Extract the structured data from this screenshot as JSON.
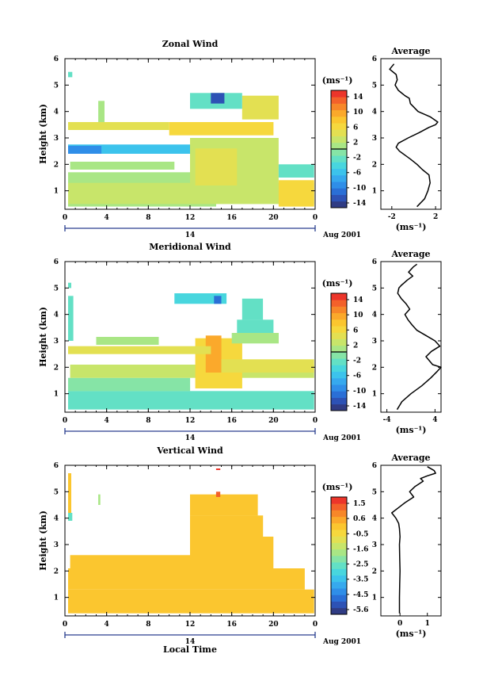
{
  "chart_data": [
    {
      "type": "heatmap",
      "title": "Zonal Wind",
      "xlabel": "",
      "ylabel": "Height (km)",
      "xlim": [
        0,
        24
      ],
      "ylim": [
        0.3,
        6
      ],
      "xticks": [
        "0",
        "4",
        "8",
        "12",
        "16",
        "20",
        "0"
      ],
      "yticks": [
        "1",
        "2",
        "3",
        "4",
        "5",
        "6"
      ],
      "day_label": "14",
      "date_label": "Aug 2001",
      "colorbar": {
        "unit": "(ms⁻¹)",
        "ticks": [
          "14",
          "10",
          "6",
          "2",
          "-2",
          "-6",
          "-10",
          "-14"
        ],
        "range": [
          -16,
          16
        ],
        "marker": 0
      },
      "segments": [
        {
          "t0": 0.3,
          "t1": 14.5,
          "h0": 0.4,
          "h1": 1.7,
          "v": 1.5
        },
        {
          "t0": 0.3,
          "t1": 23.9,
          "h0": 0.5,
          "h1": 1.3,
          "v": 3.5
        },
        {
          "t0": 0.5,
          "t1": 10.5,
          "h0": 1.8,
          "h1": 2.1,
          "v": 1.5
        },
        {
          "t0": 0.3,
          "t1": 13.0,
          "h0": 2.4,
          "h1": 2.75,
          "v": -6
        },
        {
          "t0": 0.3,
          "t1": 3.5,
          "h0": 2.4,
          "h1": 2.7,
          "v": -9
        },
        {
          "t0": 12.0,
          "t1": 20.5,
          "h0": 0.8,
          "h1": 3.0,
          "v": 2.5
        },
        {
          "t0": 12.5,
          "t1": 16.5,
          "h0": 1.2,
          "h1": 2.6,
          "v": 5
        },
        {
          "t0": 20.5,
          "t1": 23.9,
          "h0": 1.5,
          "h1": 2.0,
          "v": -3
        },
        {
          "t0": 20.5,
          "t1": 23.9,
          "h0": 0.4,
          "h1": 1.4,
          "v": 5.5
        },
        {
          "t0": 10.0,
          "t1": 20.0,
          "h0": 3.1,
          "h1": 3.6,
          "v": 6
        },
        {
          "t0": 0.3,
          "t1": 10.0,
          "h0": 3.3,
          "h1": 3.6,
          "v": 5
        },
        {
          "t0": 17.0,
          "t1": 20.5,
          "h0": 3.7,
          "h1": 4.6,
          "v": 4.5
        },
        {
          "t0": 12.0,
          "t1": 17.0,
          "h0": 4.1,
          "h1": 4.7,
          "v": -3
        },
        {
          "t0": 14.0,
          "t1": 15.3,
          "h0": 4.3,
          "h1": 4.7,
          "v": -14
        },
        {
          "t0": 0.3,
          "t1": 0.7,
          "h0": 5.3,
          "h1": 5.5,
          "v": -3
        },
        {
          "t0": 3.2,
          "t1": 3.8,
          "h0": 3.6,
          "h1": 4.4,
          "v": 0
        }
      ],
      "profile": {
        "title": "Average",
        "xlabel": "(ms⁻¹)",
        "xlim": [
          -3,
          2.5
        ],
        "xticks": [
          {
            "v": -2,
            "label": "-2"
          },
          {
            "v": 2,
            "label": "2"
          }
        ],
        "ylim": [
          0.3,
          6
        ],
        "yticks": [
          "1",
          "2",
          "3",
          "4",
          "5",
          "6"
        ],
        "x": [
          0.3,
          1.0,
          1.3,
          1.5,
          1.4,
          0.8,
          0.3,
          -0.3,
          -0.8,
          -1.3,
          -1.6,
          -1.4,
          -0.5,
          0.5,
          1.4,
          2.0,
          2.2,
          1.5,
          0.4,
          -0.3,
          -0.4,
          -0.8,
          -1.4,
          -1.7,
          -1.5,
          -1.6,
          -2.2,
          -1.8
        ],
        "y": [
          0.4,
          0.7,
          1.0,
          1.3,
          1.6,
          1.8,
          2.0,
          2.2,
          2.35,
          2.5,
          2.65,
          2.8,
          3.0,
          3.2,
          3.4,
          3.5,
          3.6,
          3.8,
          4.0,
          4.3,
          4.5,
          4.6,
          4.8,
          5.0,
          5.2,
          5.4,
          5.6,
          5.8
        ]
      }
    },
    {
      "type": "heatmap",
      "title": "Meridional Wind",
      "xlabel": "",
      "ylabel": "Height (km)",
      "xlim": [
        0,
        24
      ],
      "ylim": [
        0.3,
        6
      ],
      "xticks": [
        "0",
        "4",
        "8",
        "12",
        "16",
        "20",
        "0"
      ],
      "yticks": [
        "1",
        "2",
        "3",
        "4",
        "5",
        "6"
      ],
      "day_label": "14",
      "date_label": "Aug 2001",
      "colorbar": {
        "unit": "(ms⁻¹)",
        "ticks": [
          "14",
          "10",
          "6",
          "2",
          "-2",
          "-6",
          "-10",
          "-14"
        ],
        "range": [
          -16,
          16
        ],
        "marker": 0
      },
      "segments": [
        {
          "t0": 0.3,
          "t1": 23.9,
          "h0": 0.4,
          "h1": 1.1,
          "v": -3
        },
        {
          "t0": 0.3,
          "t1": 12.0,
          "h0": 1.1,
          "h1": 1.6,
          "v": -1.5
        },
        {
          "t0": 0.5,
          "t1": 23.9,
          "h0": 1.6,
          "h1": 2.1,
          "v": 2
        },
        {
          "t0": 12.5,
          "t1": 17.0,
          "h0": 1.2,
          "h1": 3.1,
          "v": 6
        },
        {
          "t0": 13.5,
          "t1": 15.0,
          "h0": 1.8,
          "h1": 3.2,
          "v": 9
        },
        {
          "t0": 15.0,
          "t1": 23.9,
          "h0": 1.8,
          "h1": 2.3,
          "v": 4
        },
        {
          "t0": 0.3,
          "t1": 14.0,
          "h0": 2.5,
          "h1": 2.8,
          "v": 5
        },
        {
          "t0": 3.0,
          "t1": 9.0,
          "h0": 2.85,
          "h1": 3.15,
          "v": 1
        },
        {
          "t0": 16.0,
          "t1": 20.5,
          "h0": 2.9,
          "h1": 3.3,
          "v": 1
        },
        {
          "t0": 16.5,
          "t1": 20.0,
          "h0": 3.3,
          "h1": 3.8,
          "v": -3
        },
        {
          "t0": 17.0,
          "t1": 19.0,
          "h0": 3.8,
          "h1": 4.6,
          "v": -2
        },
        {
          "t0": 10.5,
          "t1": 15.5,
          "h0": 4.4,
          "h1": 4.8,
          "v": -4
        },
        {
          "t0": 14.3,
          "t1": 15.0,
          "h0": 4.4,
          "h1": 4.7,
          "v": -11
        },
        {
          "t0": 0.3,
          "t1": 0.8,
          "h0": 3.0,
          "h1": 4.7,
          "v": -2
        },
        {
          "t0": 0.3,
          "t1": 0.6,
          "h0": 5.0,
          "h1": 5.2,
          "v": -2
        }
      ],
      "profile": {
        "title": "Average",
        "xlabel": "(ms⁻¹)",
        "xlim": [
          -5,
          5
        ],
        "xticks": [
          {
            "v": -4,
            "label": "-4"
          },
          {
            "v": 4,
            "label": "4"
          }
        ],
        "ylim": [
          0.3,
          6
        ],
        "yticks": [
          "1",
          "2",
          "3",
          "4",
          "5",
          "6"
        ],
        "x": [
          -2.3,
          -1.5,
          0.0,
          1.8,
          3.3,
          4.4,
          5.0,
          3.6,
          2.5,
          3.4,
          4.8,
          4.0,
          2.5,
          1.0,
          0.2,
          -0.5,
          -1.0,
          -0.2,
          -0.8,
          -1.6,
          -2.2,
          -2.0,
          -1.6,
          -0.6,
          0.3,
          -0.4,
          0.4,
          1.0
        ],
        "y": [
          0.4,
          0.7,
          1.0,
          1.3,
          1.6,
          1.85,
          2.0,
          2.1,
          2.4,
          2.6,
          2.8,
          3.0,
          3.2,
          3.4,
          3.6,
          3.8,
          4.0,
          4.2,
          4.4,
          4.6,
          4.8,
          5.0,
          5.1,
          5.3,
          5.45,
          5.6,
          5.8,
          5.9
        ]
      }
    },
    {
      "type": "heatmap",
      "title": "Vertical Wind",
      "xlabel": "Local Time",
      "ylabel": "Height (km)",
      "xlim": [
        0,
        24
      ],
      "ylim": [
        0.3,
        6
      ],
      "xticks": [
        "0",
        "4",
        "8",
        "12",
        "16",
        "20",
        "0"
      ],
      "yticks": [
        "1",
        "2",
        "3",
        "4",
        "5",
        "6"
      ],
      "day_label": "14",
      "date_label": "Aug 2001",
      "colorbar": {
        "unit": "(ms⁻¹)",
        "ticks": [
          "1.5",
          "0.6",
          "-0.5",
          "-1.6",
          "-2.5",
          "-3.5",
          "-4.5",
          "-5.6"
        ],
        "range": [
          -6.0,
          2.0
        ],
        "marker": null
      },
      "segments": [
        {
          "t0": 0.3,
          "t1": 23.9,
          "h0": 0.4,
          "h1": 1.3,
          "v": 0.0
        },
        {
          "t0": 0.3,
          "t1": 23.0,
          "h0": 1.3,
          "h1": 2.1,
          "v": -0.1
        },
        {
          "t0": 0.5,
          "t1": 12.0,
          "h0": 2.1,
          "h1": 2.6,
          "v": 0.0
        },
        {
          "t0": 12.0,
          "t1": 20.0,
          "h0": 2.1,
          "h1": 3.3,
          "v": 0.0
        },
        {
          "t0": 12.0,
          "t1": 19.0,
          "h0": 3.3,
          "h1": 4.1,
          "v": -0.1
        },
        {
          "t0": 12.0,
          "t1": 18.5,
          "h0": 4.1,
          "h1": 4.9,
          "v": 0.1
        },
        {
          "t0": 14.5,
          "t1": 14.9,
          "h0": 4.8,
          "h1": 5.0,
          "v": 1.5
        },
        {
          "t0": 14.5,
          "t1": 14.9,
          "h0": 5.82,
          "h1": 5.88,
          "v": 1.8
        },
        {
          "t0": 0.3,
          "t1": 0.6,
          "h0": 3.9,
          "h1": 5.7,
          "v": -0.2
        },
        {
          "t0": 0.3,
          "t1": 0.7,
          "h0": 3.9,
          "h1": 4.2,
          "v": -2.5
        },
        {
          "t0": 3.2,
          "t1": 3.4,
          "h0": 4.5,
          "h1": 4.9,
          "v": -2.0
        }
      ],
      "profile": {
        "title": "Average",
        "xlabel": "(ms⁻¹)",
        "xlim": [
          -0.7,
          1.5
        ],
        "xticks": [
          {
            "v": 0,
            "label": "0"
          },
          {
            "v": 1,
            "label": "1"
          }
        ],
        "ylim": [
          0.3,
          6
        ],
        "yticks": [
          "1",
          "2",
          "3",
          "4",
          "5",
          "6"
        ],
        "x": [
          -0.02,
          -0.02,
          -0.01,
          0.0,
          -0.01,
          -0.02,
          0.0,
          -0.02,
          -0.05,
          -0.15,
          -0.3,
          -0.05,
          0.2,
          0.5,
          0.35,
          0.55,
          0.85,
          0.75,
          1.0,
          1.3,
          1.25,
          1.0
        ],
        "y": [
          0.4,
          1.0,
          1.5,
          2.0,
          2.5,
          3.0,
          3.3,
          3.6,
          3.8,
          4.0,
          4.2,
          4.4,
          4.6,
          4.8,
          5.0,
          5.2,
          5.4,
          5.5,
          5.6,
          5.7,
          5.8,
          5.95
        ]
      }
    }
  ],
  "colorscale": [
    "#303c84",
    "#2d52b5",
    "#2a6fd6",
    "#2f8ee8",
    "#36a9ee",
    "#3cc3ec",
    "#48d6de",
    "#63e0c5",
    "#86e4a6",
    "#a9e685",
    "#c8e56a",
    "#e3e052",
    "#f6d83d",
    "#fbc62f",
    "#fba92b",
    "#f78729",
    "#f3612a",
    "#ec352a"
  ]
}
